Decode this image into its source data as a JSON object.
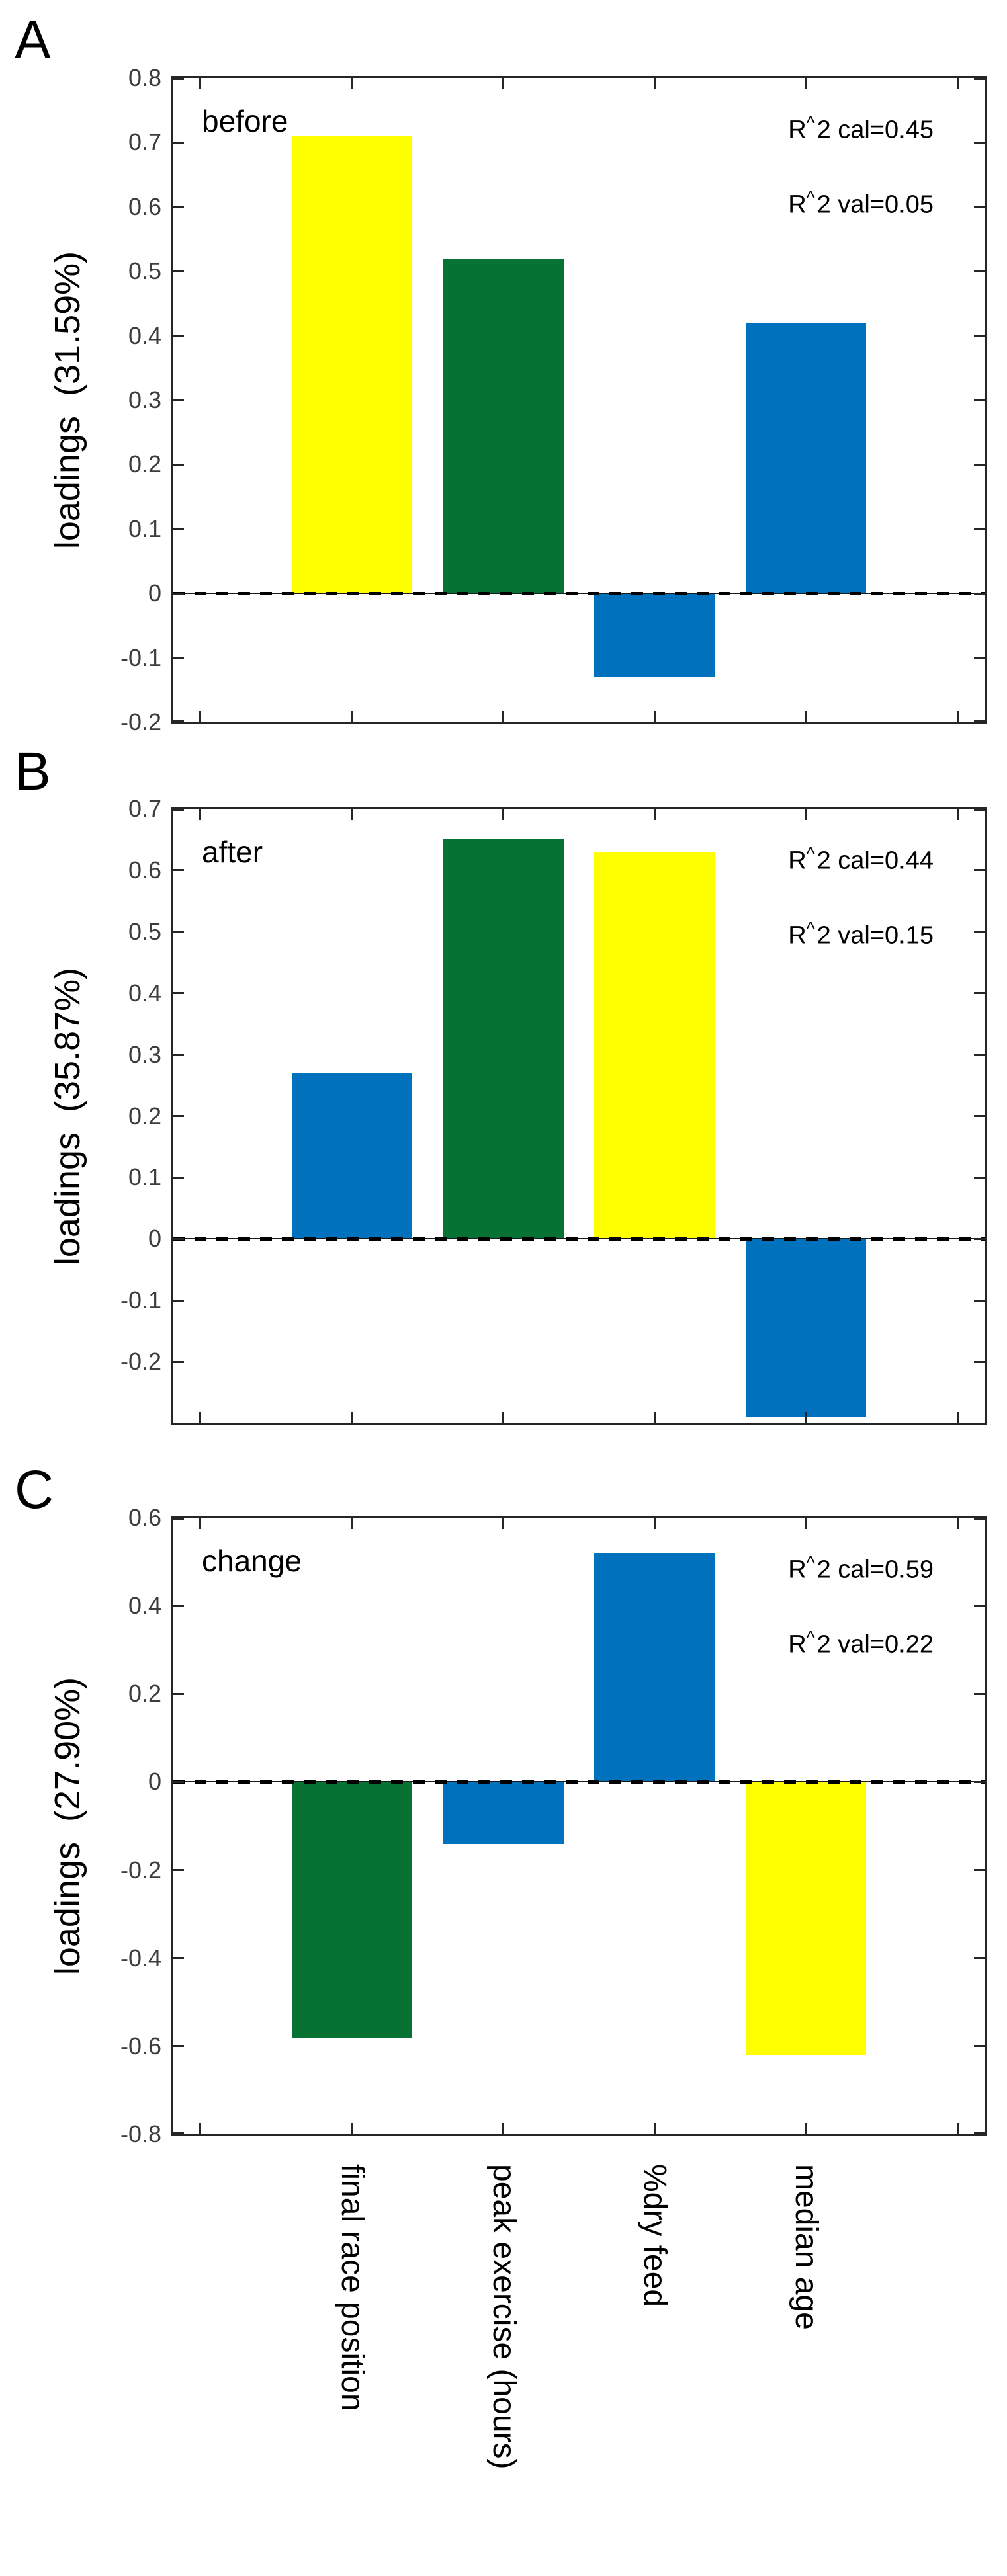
{
  "figure": {
    "background": "#ffffff",
    "axis_color": "#262626",
    "tick_label_color": "#3d3d3d"
  },
  "chart_data": {
    "type": "bar",
    "orientation": "vertical",
    "grid": "off",
    "zero_reference_line": "dashed black at y=0",
    "categories": [
      "final race position",
      "peak exercise (hours)",
      "%dry feed",
      "median age"
    ],
    "bar_colors_hex": {
      "yellow": "#ffff00",
      "green": "#067233",
      "blue": "#0071bc"
    },
    "panels": [
      {
        "id": "before",
        "letter": "A",
        "title": "before",
        "ylabel": "loadings  (31.59%)",
        "r2_cal": "R^2 cal=0.45",
        "r2_val": "R^2 val=0.05",
        "ylim": [
          -0.2,
          0.8
        ],
        "yticks": [
          {
            "value": 0.8,
            "label": "0.8"
          },
          {
            "value": 0.7,
            "label": "0.7"
          },
          {
            "value": 0.6,
            "label": "0.6"
          },
          {
            "value": 0.5,
            "label": "0.5"
          },
          {
            "value": 0.4,
            "label": "0.4"
          },
          {
            "value": 0.3,
            "label": "0.3"
          },
          {
            "value": 0.2,
            "label": "0.2"
          },
          {
            "value": 0.1,
            "label": "0.1"
          },
          {
            "value": 0.0,
            "label": "0"
          },
          {
            "value": -0.1,
            "label": "-0.1"
          },
          {
            "value": -0.2,
            "label": "-0.2"
          }
        ],
        "bars": [
          {
            "category": "final race position",
            "value": 0.71,
            "color": "yellow"
          },
          {
            "category": "peak exercise (hours)",
            "value": 0.52,
            "color": "green"
          },
          {
            "category": "%dry feed",
            "value": -0.13,
            "color": "blue"
          },
          {
            "category": "median age",
            "value": 0.42,
            "color": "blue"
          }
        ]
      },
      {
        "id": "after",
        "letter": "B",
        "title": "after",
        "ylabel": "loadings  (35.87%)",
        "r2_cal": "R^2 cal=0.44",
        "r2_val": "R^2 val=0.15",
        "ylim": [
          -0.3,
          0.7
        ],
        "yticks": [
          {
            "value": 0.7,
            "label": "0.7"
          },
          {
            "value": 0.6,
            "label": "0.6"
          },
          {
            "value": 0.5,
            "label": "0.5"
          },
          {
            "value": 0.4,
            "label": "0.4"
          },
          {
            "value": 0.3,
            "label": "0.3"
          },
          {
            "value": 0.2,
            "label": "0.2"
          },
          {
            "value": 0.1,
            "label": "0.1"
          },
          {
            "value": 0.0,
            "label": "0"
          },
          {
            "value": -0.1,
            "label": "-0.1"
          },
          {
            "value": -0.2,
            "label": "-0.2"
          }
        ],
        "bars": [
          {
            "category": "final race position",
            "value": 0.27,
            "color": "blue"
          },
          {
            "category": "peak exercise (hours)",
            "value": 0.65,
            "color": "green"
          },
          {
            "category": "%dry feed",
            "value": 0.63,
            "color": "yellow"
          },
          {
            "category": "median age",
            "value": -0.29,
            "color": "blue"
          }
        ]
      },
      {
        "id": "change",
        "letter": "C",
        "title": "change",
        "ylabel": "loadings  (27.90%)",
        "r2_cal": "R^2 cal=0.59",
        "r2_val": "R^2 val=0.22",
        "ylim": [
          -0.8,
          0.6
        ],
        "yticks": [
          {
            "value": 0.6,
            "label": "0.6"
          },
          {
            "value": 0.4,
            "label": "0.4"
          },
          {
            "value": 0.2,
            "label": "0.2"
          },
          {
            "value": 0.0,
            "label": "0"
          },
          {
            "value": -0.2,
            "label": "-0.2"
          },
          {
            "value": -0.4,
            "label": "-0.4"
          },
          {
            "value": -0.6,
            "label": "-0.6"
          },
          {
            "value": -0.8,
            "label": "-0.8"
          }
        ],
        "bars": [
          {
            "category": "final race position",
            "value": -0.58,
            "color": "green"
          },
          {
            "category": "peak exercise (hours)",
            "value": -0.14,
            "color": "blue"
          },
          {
            "category": "%dry feed",
            "value": 0.52,
            "color": "blue"
          },
          {
            "category": "median age",
            "value": -0.62,
            "color": "yellow"
          }
        ]
      }
    ]
  }
}
